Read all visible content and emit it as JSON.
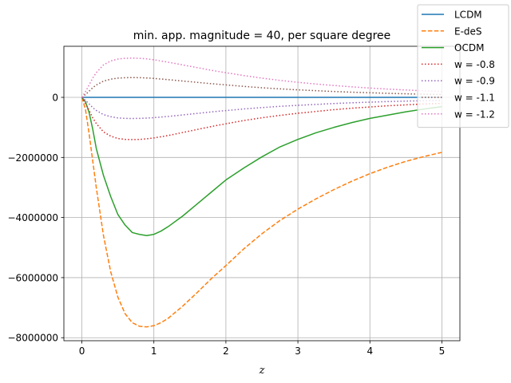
{
  "chart_data": {
    "type": "line",
    "title": "min. app. magnitude = 40, per square degree",
    "xlabel": "z",
    "ylabel": "",
    "xlim": [
      -0.25,
      5.25
    ],
    "ylim": [
      -8100000,
      1700000
    ],
    "xticks": [
      0,
      1,
      2,
      3,
      4,
      5
    ],
    "xtick_labels": [
      "0",
      "1",
      "2",
      "3",
      "4",
      "5"
    ],
    "yticks": [
      0,
      -2000000,
      -4000000,
      -6000000,
      -8000000
    ],
    "ytick_labels": [
      "0",
      "−2000000",
      "−4000000",
      "−6000000",
      "−8000000"
    ],
    "grid": true,
    "legend_position": "top-right",
    "x": [
      0,
      0.05,
      0.1,
      0.15,
      0.2,
      0.3,
      0.4,
      0.5,
      0.6,
      0.7,
      0.8,
      0.9,
      1.0,
      1.1,
      1.2,
      1.4,
      1.6,
      1.8,
      2.0,
      2.25,
      2.5,
      2.75,
      3.0,
      3.25,
      3.5,
      3.75,
      4.0,
      4.25,
      4.5,
      4.75,
      5.0
    ],
    "series": [
      {
        "name": "LCDM",
        "color": "#1f77b4",
        "dash": "solid",
        "values": [
          0,
          0,
          0,
          0,
          0,
          0,
          0,
          0,
          0,
          0,
          0,
          0,
          0,
          0,
          0,
          0,
          0,
          0,
          0,
          0,
          0,
          0,
          0,
          0,
          0,
          0,
          0,
          0,
          0,
          0,
          0
        ]
      },
      {
        "name": "E-deS",
        "color": "#ff7f0e",
        "dash": "dashed",
        "values": [
          0,
          -400000,
          -1200000,
          -2100000,
          -3000000,
          -4600000,
          -5800000,
          -6650000,
          -7200000,
          -7500000,
          -7620000,
          -7640000,
          -7600000,
          -7500000,
          -7350000,
          -6950000,
          -6500000,
          -6030000,
          -5600000,
          -5040000,
          -4540000,
          -4100000,
          -3720000,
          -3380000,
          -3070000,
          -2790000,
          -2540000,
          -2320000,
          -2130000,
          -1970000,
          -1830000
        ]
      },
      {
        "name": "OCDM",
        "color": "#2ca02c",
        "dash": "solid",
        "values": [
          0,
          -150000,
          -500000,
          -1050000,
          -1700000,
          -2600000,
          -3300000,
          -3900000,
          -4250000,
          -4500000,
          -4560000,
          -4600000,
          -4560000,
          -4450000,
          -4300000,
          -3950000,
          -3550000,
          -3150000,
          -2750000,
          -2350000,
          -1980000,
          -1650000,
          -1400000,
          -1180000,
          -1000000,
          -840000,
          -700000,
          -590000,
          -480000,
          -390000,
          -310000
        ]
      },
      {
        "name": "w = -0.8",
        "color": "#d62728",
        "dash": "dotted",
        "values": [
          0,
          -200000,
          -430000,
          -680000,
          -870000,
          -1150000,
          -1290000,
          -1370000,
          -1400000,
          -1405000,
          -1400000,
          -1380000,
          -1350000,
          -1310000,
          -1270000,
          -1170000,
          -1070000,
          -970000,
          -880000,
          -770000,
          -680000,
          -600000,
          -530000,
          -470000,
          -410000,
          -360000,
          -320000,
          -280000,
          -250000,
          -220000,
          -200000
        ]
      },
      {
        "name": "w = -0.9",
        "color": "#9467bd",
        "dash": "dotted",
        "values": [
          0,
          -100000,
          -215000,
          -340000,
          -435000,
          -575000,
          -645000,
          -685000,
          -700000,
          -703000,
          -700000,
          -690000,
          -675000,
          -655000,
          -635000,
          -585000,
          -535000,
          -485000,
          -440000,
          -385000,
          -340000,
          -300000,
          -265000,
          -235000,
          -205000,
          -180000,
          -160000,
          -140000,
          -125000,
          -110000,
          -100000
        ]
      },
      {
        "name": "w = -1.1",
        "color": "#8c564b",
        "dash": "dotted",
        "values": [
          0,
          95000,
          205000,
          320000,
          410000,
          540000,
          605000,
          640000,
          655000,
          658000,
          655000,
          645000,
          630000,
          610000,
          590000,
          545000,
          500000,
          455000,
          415000,
          365000,
          320000,
          283000,
          250000,
          222000,
          195000,
          172000,
          152000,
          134000,
          118000,
          105000,
          95000
        ]
      },
      {
        "name": "w = -1.2",
        "color": "#e377c2",
        "dash": "dotted",
        "values": [
          0,
          190000,
          410000,
          640000,
          820000,
          1080000,
          1210000,
          1275000,
          1300000,
          1305000,
          1300000,
          1280000,
          1250000,
          1210000,
          1170000,
          1080000,
          990000,
          900000,
          820000,
          725000,
          640000,
          565000,
          500000,
          445000,
          395000,
          350000,
          310000,
          275000,
          245000,
          218000,
          195000
        ]
      }
    ]
  }
}
